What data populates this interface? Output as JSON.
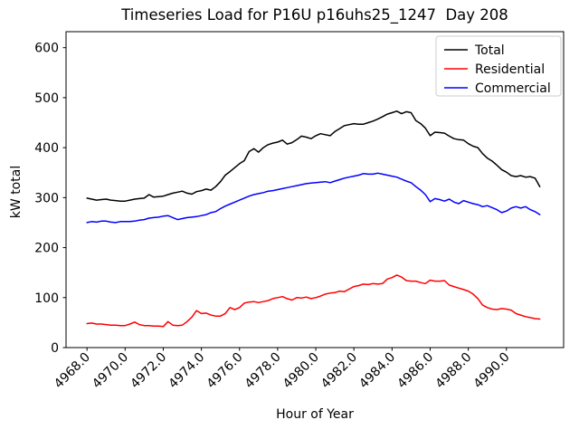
{
  "chart_data": {
    "type": "line",
    "title": "Timeseries Load for P16U p16uhs25_1247  Day 208",
    "xlabel": "Hour of Year",
    "ylabel": "kW total",
    "xlim": [
      4966.9,
      4993.0
    ],
    "ylim": [
      0,
      632
    ],
    "grid": false,
    "legend_position": "upper right",
    "x_ticks": [
      4968,
      4970,
      4972,
      4974,
      4976,
      4978,
      4980,
      4982,
      4984,
      4986,
      4988,
      4990
    ],
    "x_tick_labels": [
      "4968.0",
      "4970.0",
      "4972.0",
      "4974.0",
      "4976.0",
      "4978.0",
      "4980.0",
      "4982.0",
      "4984.0",
      "4986.0",
      "4988.0",
      "4990.0"
    ],
    "x_tick_rotation": 45,
    "y_ticks": [
      0,
      100,
      200,
      300,
      400,
      500,
      600
    ],
    "y_tick_labels": [
      "0",
      "100",
      "200",
      "300",
      "400",
      "500",
      "600"
    ],
    "x_start": 4968.0,
    "x_step": 0.25,
    "n_points": 96,
    "series": [
      {
        "name": "Total",
        "color": "#000000",
        "values": [
          299,
          297,
          295,
          296,
          297,
          295,
          294,
          293,
          293,
          295,
          297,
          298,
          299,
          306,
          301,
          302,
          303,
          306,
          309,
          311,
          313,
          309,
          307,
          312,
          314,
          317,
          315,
          322,
          332,
          345,
          352,
          360,
          368,
          374,
          392,
          398,
          391,
          400,
          406,
          409,
          411,
          415,
          407,
          410,
          416,
          423,
          421,
          418,
          424,
          428,
          426,
          424,
          432,
          438,
          444,
          446,
          448,
          447,
          447,
          450,
          453,
          457,
          462,
          467,
          470,
          473,
          468,
          472,
          470,
          454,
          448,
          439,
          424,
          431,
          430,
          429,
          423,
          418,
          416,
          415,
          408,
          403,
          400,
          388,
          379,
          373,
          365,
          356,
          351,
          344,
          342,
          344,
          341,
          342,
          339,
          322
        ]
      },
      {
        "name": "Residential",
        "color": "#ff0000",
        "values": [
          48,
          49,
          47,
          47,
          46,
          45,
          45,
          44,
          44,
          47,
          51,
          46,
          44,
          44,
          43,
          43,
          42,
          52,
          45,
          44,
          45,
          52,
          61,
          74,
          68,
          69,
          65,
          63,
          63,
          68,
          80,
          76,
          80,
          89,
          91,
          92,
          90,
          92,
          94,
          98,
          100,
          102,
          98,
          95,
          100,
          99,
          101,
          98,
          100,
          103,
          107,
          109,
          110,
          113,
          112,
          117,
          122,
          124,
          127,
          126,
          128,
          127,
          128,
          137,
          140,
          145,
          141,
          134,
          133,
          133,
          130,
          128,
          135,
          133,
          133,
          134,
          125,
          122,
          119,
          116,
          113,
          107,
          98,
          85,
          80,
          77,
          76,
          78,
          77,
          75,
          68,
          65,
          62,
          60,
          58,
          57
        ]
      },
      {
        "name": "Commercial",
        "color": "#0000ff",
        "values": [
          250,
          252,
          251,
          253,
          253,
          251,
          250,
          252,
          252,
          252,
          253,
          255,
          256,
          259,
          260,
          261,
          263,
          264,
          260,
          256,
          258,
          260,
          261,
          262,
          264,
          266,
          270,
          272,
          278,
          283,
          287,
          291,
          295,
          299,
          303,
          306,
          308,
          310,
          313,
          314,
          316,
          318,
          320,
          322,
          324,
          326,
          328,
          329,
          330,
          331,
          332,
          330,
          333,
          336,
          339,
          341,
          343,
          345,
          348,
          347,
          347,
          349,
          347,
          345,
          343,
          341,
          337,
          333,
          330,
          322,
          315,
          306,
          292,
          298,
          296,
          293,
          297,
          291,
          288,
          294,
          291,
          288,
          286,
          282,
          284,
          280,
          276,
          270,
          273,
          279,
          282,
          279,
          282,
          276,
          272,
          266
        ]
      }
    ]
  }
}
